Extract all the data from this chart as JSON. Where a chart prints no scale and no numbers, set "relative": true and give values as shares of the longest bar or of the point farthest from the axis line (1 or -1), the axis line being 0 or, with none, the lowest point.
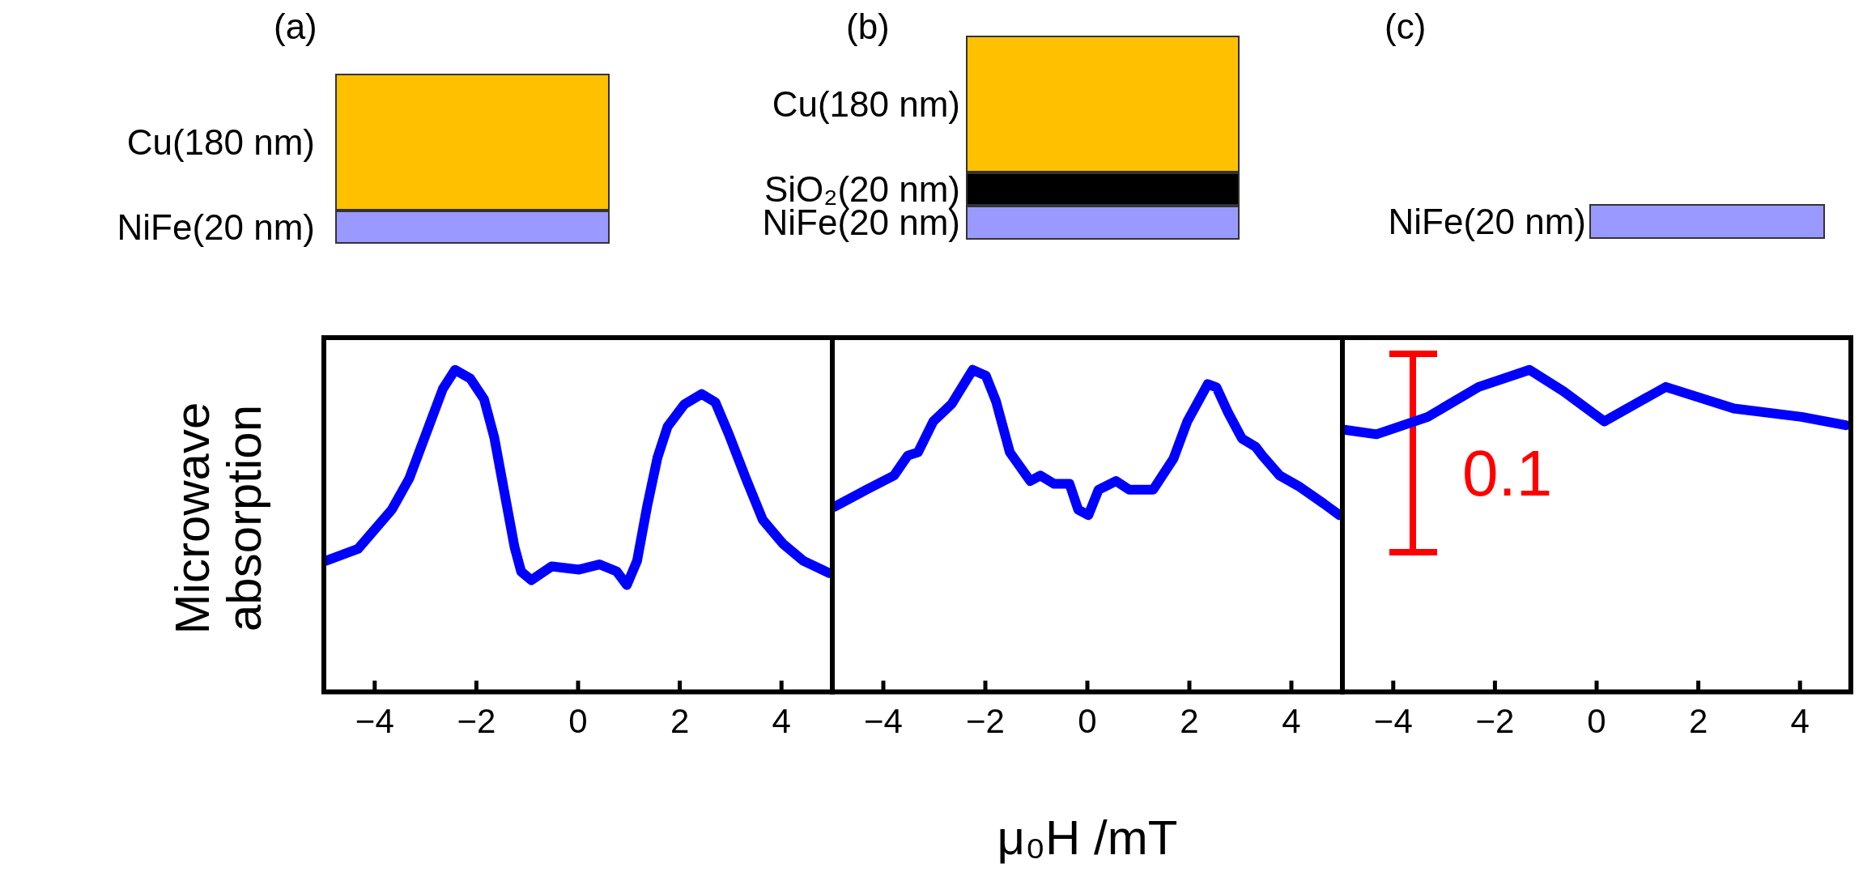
{
  "chart_data": [
    {
      "type": "line",
      "title": "(a)",
      "ylabel": "Microwave absorption",
      "annotations": [
        "Cu(180 nm)",
        "NiFe(20 nm)"
      ],
      "relative": true,
      "x": [
        -4.96,
        -4.33,
        -3.66,
        -3.32,
        -2.99,
        -2.66,
        -2.42,
        -2.12,
        -1.85,
        -1.65,
        -1.45,
        -1.25,
        -1.12,
        -0.92,
        -0.52,
        0.02,
        0.42,
        0.76,
        0.96,
        1.16,
        1.36,
        1.56,
        1.76,
        2.09,
        2.43,
        2.7,
        2.96,
        3.3,
        3.63,
        4.03,
        4.43,
        4.94
      ],
      "series": [
        {
          "color": "#0000ff",
          "values": [
            0.407,
            0.444,
            0.567,
            0.663,
            0.802,
            0.941,
            1,
            0.973,
            0.909,
            0.791,
            0.62,
            0.45,
            0.374,
            0.347,
            0.39,
            0.38,
            0.396,
            0.374,
            0.332,
            0.407,
            0.578,
            0.727,
            0.824,
            0.893,
            0.925,
            0.899,
            0.802,
            0.663,
            0.535,
            0.46,
            0.407,
            0.369
          ]
        }
      ],
      "xlim": [
        -5,
        5
      ],
      "xticks": [
        -4,
        -2,
        0,
        2,
        4
      ],
      "tick_labels": "x",
      "marker": "none"
    },
    {
      "type": "line",
      "title": "(b)",
      "xlabel": "μ₀H /mT",
      "annotations": [
        "Cu(180 nm)",
        "SiO₂(20 nm)",
        "NiFe(20 nm)"
      ],
      "relative": true,
      "x": [
        -4.96,
        -4.33,
        -3.79,
        -3.52,
        -3.32,
        -3.02,
        -2.66,
        -2.25,
        -1.99,
        -1.79,
        -1.52,
        -1.12,
        -0.92,
        -0.65,
        -0.35,
        -0.18,
        0.02,
        0.22,
        0.56,
        0.82,
        1.29,
        1.69,
        1.96,
        2.36,
        2.53,
        2.76,
        3.03,
        3.3,
        3.43,
        3.77,
        4.17,
        4.64,
        4.94
      ],
      "series": [
        {
          "color": "#0000ff",
          "values": [
            0.575,
            0.628,
            0.672,
            0.734,
            0.744,
            0.84,
            0.894,
            1,
            0.982,
            0.902,
            0.744,
            0.655,
            0.672,
            0.646,
            0.646,
            0.566,
            0.549,
            0.628,
            0.655,
            0.628,
            0.628,
            0.725,
            0.84,
            0.956,
            0.946,
            0.867,
            0.787,
            0.761,
            0.734,
            0.672,
            0.636,
            0.584,
            0.549
          ]
        }
      ],
      "xlim": [
        -5,
        5
      ],
      "xticks": [
        -4,
        -2,
        0,
        2,
        4
      ],
      "tick_labels": "x",
      "marker": "none"
    },
    {
      "type": "line",
      "title": "(c)",
      "annotations": [
        "NiFe(20 nm)",
        "0.1"
      ],
      "relative": true,
      "x": [
        -4.96,
        -4.33,
        -3.32,
        -2.32,
        -1.32,
        -0.65,
        0.15,
        1.36,
        2.7,
        4.03,
        4.9
      ],
      "series": [
        {
          "color": "#0000ff",
          "values": [
            0.814,
            0.8,
            0.854,
            0.947,
            1,
            0.933,
            0.84,
            0.947,
            0.88,
            0.854,
            0.828
          ]
        }
      ],
      "xlim": [
        -5,
        5
      ],
      "xticks": [
        -4,
        -2,
        0,
        2,
        4
      ],
      "tick_labels": "x",
      "marker": "none"
    }
  ]
}
